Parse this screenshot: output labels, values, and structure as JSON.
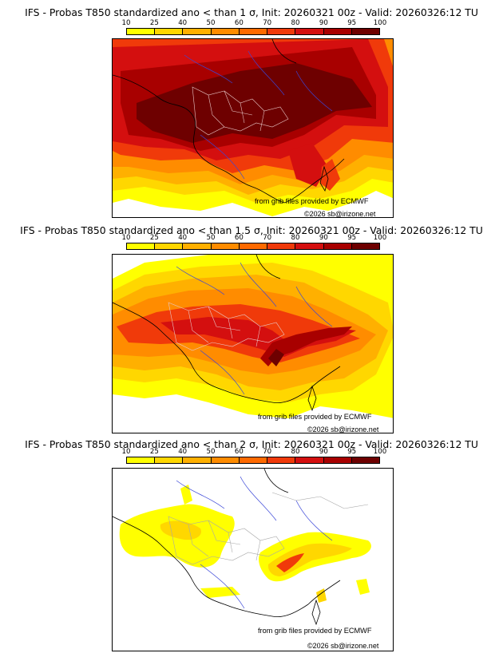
{
  "panels": [
    {
      "title": "IFS - Probas T850  standardized ano < than 1 σ, Init: 20260321 00z - Valid: 20260326:12 TU",
      "threshold": "1 σ"
    },
    {
      "title": "IFS - Probas T850  standardized ano < than 1.5 σ, Init: 20260321 00z - Valid: 20260326:12 TU",
      "threshold": "1.5 σ"
    },
    {
      "title": "IFS - Probas T850  standardized ano < than 2 σ, Init: 20260321 00z - Valid: 20260326:12 TU",
      "threshold": "2 σ"
    }
  ],
  "scale": {
    "labels": [
      "10",
      "25",
      "40",
      "50",
      "60",
      "70",
      "80",
      "90",
      "95",
      "100"
    ],
    "colors": [
      "#ffff00",
      "#ffd700",
      "#ffb000",
      "#ff8c00",
      "#ff6a00",
      "#f03a0a",
      "#d40f0f",
      "#a80000",
      "#6e0000"
    ]
  },
  "credits": {
    "source": "from grib files provided by ECMWF",
    "copyright": "©2026 sb@irizone.net"
  }
}
